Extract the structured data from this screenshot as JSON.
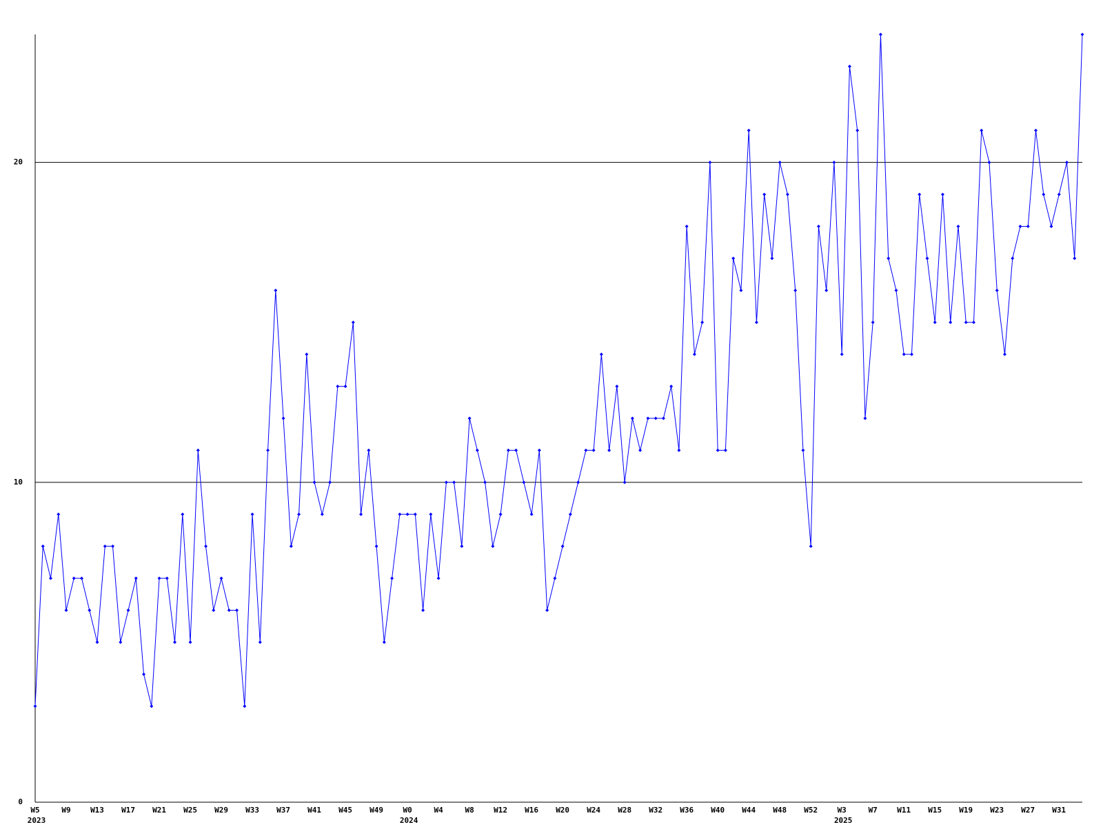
{
  "chart_data": {
    "type": "line",
    "categories": [
      "W5",
      null,
      null,
      null,
      "W9",
      null,
      null,
      null,
      "W13",
      null,
      null,
      null,
      "W17",
      null,
      null,
      null,
      "W21",
      null,
      null,
      null,
      "W25",
      null,
      null,
      null,
      "W29",
      null,
      null,
      null,
      "W33",
      null,
      null,
      null,
      "W37",
      null,
      null,
      null,
      "W41",
      null,
      null,
      null,
      "W45",
      null,
      null,
      null,
      "W49",
      null,
      null,
      null,
      "W0",
      null,
      null,
      null,
      "W4",
      null,
      null,
      null,
      "W8",
      null,
      null,
      null,
      "W12",
      null,
      null,
      null,
      "W16",
      null,
      null,
      null,
      "W20",
      null,
      null,
      null,
      "W24",
      null,
      null,
      null,
      "W28",
      null,
      null,
      null,
      "W32",
      null,
      null,
      null,
      "W36",
      null,
      null,
      null,
      "W40",
      null,
      null,
      null,
      "W44",
      null,
      null,
      null,
      "W48",
      null,
      null,
      null,
      "W52",
      null,
      null,
      null,
      "W3",
      null,
      null,
      null,
      "W7",
      null,
      null,
      null,
      "W11",
      null,
      null,
      null,
      "W15",
      null,
      null,
      null,
      "W19",
      null,
      null,
      null,
      "W23",
      null,
      null,
      null,
      "W27",
      null,
      null,
      null,
      "W31",
      null,
      null,
      null
    ],
    "category_years": [
      "2023",
      null,
      null,
      null,
      null,
      null,
      null,
      null,
      null,
      null,
      null,
      null,
      null,
      null,
      null,
      null,
      null,
      null,
      null,
      null,
      null,
      null,
      null,
      null,
      null,
      null,
      null,
      null,
      null,
      null,
      null,
      null,
      null,
      null,
      null,
      null,
      null,
      null,
      null,
      null,
      null,
      null,
      null,
      null,
      null,
      null,
      null,
      null,
      "2024",
      null,
      null,
      null,
      null,
      null,
      null,
      null,
      null,
      null,
      null,
      null,
      null,
      null,
      null,
      null,
      null,
      null,
      null,
      null,
      null,
      null,
      null,
      null,
      null,
      null,
      null,
      null,
      null,
      null,
      null,
      null,
      null,
      null,
      null,
      null,
      null,
      null,
      null,
      null,
      null,
      null,
      null,
      null,
      null,
      null,
      null,
      null,
      null,
      null,
      null,
      null,
      null,
      null,
      null,
      null,
      "2025",
      null,
      null,
      null,
      null,
      null,
      null,
      null,
      null,
      null,
      null,
      null,
      null,
      null,
      null,
      null,
      null,
      null,
      null,
      null,
      null,
      null,
      null,
      null,
      null,
      null,
      null,
      null,
      null,
      null,
      null,
      null
    ],
    "series": [
      {
        "color": "#0000ff",
        "values": [
          3,
          8,
          7,
          9,
          6,
          7,
          7,
          6,
          5,
          8,
          8,
          5,
          6,
          7,
          4,
          3,
          7,
          7,
          5,
          9,
          5,
          11,
          8,
          6,
          7,
          6,
          6,
          3,
          9,
          5,
          11,
          16,
          12,
          8,
          9,
          14,
          10,
          9,
          10,
          13,
          13,
          15,
          9,
          11,
          8,
          5,
          7,
          9,
          9,
          9,
          6,
          9,
          7,
          10,
          10,
          8,
          12,
          11,
          10,
          8,
          9,
          11,
          11,
          10,
          9,
          11,
          6,
          7,
          8,
          9,
          10,
          11,
          11,
          14,
          11,
          13,
          10,
          12,
          11,
          12,
          12,
          12,
          13,
          11,
          18,
          14,
          15,
          20,
          11,
          11,
          17,
          16,
          21,
          15,
          19,
          17,
          20,
          19,
          16,
          11,
          8,
          18,
          16,
          20,
          14,
          23,
          21,
          12,
          15,
          24,
          17,
          16,
          14,
          14,
          19,
          17,
          15,
          19,
          15,
          18,
          15,
          15,
          21,
          20,
          16,
          14,
          17,
          18,
          18,
          21,
          19,
          18,
          19,
          20,
          17,
          24
        ]
      }
    ],
    "ylim": [
      0,
      24
    ],
    "yticks": [
      0,
      10,
      20
    ],
    "grid": true
  }
}
